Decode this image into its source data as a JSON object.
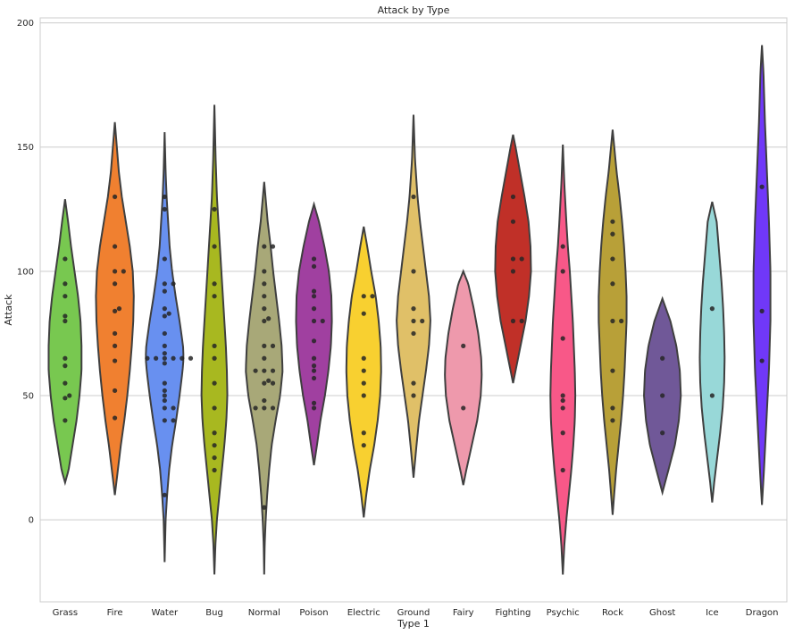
{
  "chart_data": {
    "type": "violin",
    "title": "Attack by Type",
    "xlabel": "Type 1",
    "ylabel": "Attack",
    "ylim": [
      -33,
      202
    ],
    "yticks": [
      0,
      50,
      100,
      150,
      200
    ],
    "grid": true,
    "categories": [
      {
        "name": "Grass",
        "color": "#78C850",
        "range": [
          15,
          129
        ],
        "points": [
          105,
          95,
          90,
          82,
          80,
          65,
          62,
          55,
          50,
          49,
          40
        ],
        "profile": [
          [
            15,
            0.0
          ],
          [
            20,
            0.14
          ],
          [
            30,
            0.3
          ],
          [
            40,
            0.46
          ],
          [
            50,
            0.58
          ],
          [
            60,
            0.66
          ],
          [
            70,
            0.66
          ],
          [
            80,
            0.62
          ],
          [
            90,
            0.52
          ],
          [
            100,
            0.38
          ],
          [
            110,
            0.24
          ],
          [
            120,
            0.12
          ],
          [
            129,
            0.0
          ]
        ]
      },
      {
        "name": "Fire",
        "color": "#F08030",
        "range": [
          10,
          160
        ],
        "points": [
          130,
          110,
          100,
          100,
          95,
          85,
          84,
          75,
          70,
          64,
          52,
          41
        ],
        "profile": [
          [
            10,
            0.0
          ],
          [
            20,
            0.12
          ],
          [
            30,
            0.24
          ],
          [
            40,
            0.38
          ],
          [
            50,
            0.5
          ],
          [
            60,
            0.6
          ],
          [
            70,
            0.68
          ],
          [
            80,
            0.74
          ],
          [
            90,
            0.76
          ],
          [
            100,
            0.72
          ],
          [
            110,
            0.6
          ],
          [
            120,
            0.44
          ],
          [
            130,
            0.28
          ],
          [
            140,
            0.16
          ],
          [
            150,
            0.08
          ],
          [
            160,
            0.0
          ]
        ]
      },
      {
        "name": "Water",
        "color": "#6890F0",
        "range": [
          -17,
          156
        ],
        "points": [
          130,
          125,
          105,
          95,
          95,
          92,
          85,
          83,
          82,
          75,
          70,
          67,
          65,
          65,
          65,
          65,
          65,
          65,
          63,
          55,
          52,
          50,
          48,
          45,
          45,
          40,
          40,
          10
        ],
        "profile": [
          [
            -17,
            0.0
          ],
          [
            0,
            0.04
          ],
          [
            10,
            0.1
          ],
          [
            20,
            0.18
          ],
          [
            30,
            0.3
          ],
          [
            40,
            0.46
          ],
          [
            50,
            0.6
          ],
          [
            60,
            0.72
          ],
          [
            65,
            0.76
          ],
          [
            70,
            0.74
          ],
          [
            80,
            0.6
          ],
          [
            90,
            0.44
          ],
          [
            100,
            0.3
          ],
          [
            110,
            0.2
          ],
          [
            120,
            0.14
          ],
          [
            130,
            0.08
          ],
          [
            140,
            0.04
          ],
          [
            156,
            0.0
          ]
        ]
      },
      {
        "name": "Bug",
        "color": "#A8B820",
        "range": [
          -22,
          167
        ],
        "points": [
          125,
          110,
          95,
          90,
          70,
          65,
          55,
          45,
          35,
          30,
          25,
          20
        ],
        "profile": [
          [
            -22,
            0.0
          ],
          [
            -10,
            0.04
          ],
          [
            0,
            0.1
          ],
          [
            10,
            0.2
          ],
          [
            20,
            0.3
          ],
          [
            30,
            0.4
          ],
          [
            40,
            0.48
          ],
          [
            50,
            0.52
          ],
          [
            60,
            0.5
          ],
          [
            70,
            0.46
          ],
          [
            80,
            0.4
          ],
          [
            90,
            0.34
          ],
          [
            100,
            0.28
          ],
          [
            110,
            0.22
          ],
          [
            120,
            0.16
          ],
          [
            130,
            0.1
          ],
          [
            145,
            0.05
          ],
          [
            167,
            0.0
          ]
        ]
      },
      {
        "name": "Normal",
        "color": "#A8A878",
        "range": [
          -22,
          136
        ],
        "points": [
          110,
          110,
          100,
          95,
          90,
          85,
          81,
          80,
          70,
          70,
          65,
          60,
          60,
          60,
          56,
          55,
          55,
          48,
          45,
          45,
          45,
          5
        ],
        "profile": [
          [
            -22,
            0.0
          ],
          [
            -10,
            0.02
          ],
          [
            0,
            0.06
          ],
          [
            10,
            0.12
          ],
          [
            20,
            0.2
          ],
          [
            30,
            0.3
          ],
          [
            40,
            0.46
          ],
          [
            50,
            0.64
          ],
          [
            60,
            0.74
          ],
          [
            70,
            0.7
          ],
          [
            80,
            0.6
          ],
          [
            90,
            0.48
          ],
          [
            100,
            0.36
          ],
          [
            110,
            0.26
          ],
          [
            120,
            0.14
          ],
          [
            136,
            0.0
          ]
        ]
      },
      {
        "name": "Poison",
        "color": "#A040A0",
        "range": [
          22,
          127
        ],
        "points": [
          105,
          102,
          92,
          90,
          85,
          80,
          80,
          72,
          65,
          62,
          60,
          57,
          47,
          45
        ],
        "profile": [
          [
            22,
            0.0
          ],
          [
            30,
            0.12
          ],
          [
            40,
            0.26
          ],
          [
            50,
            0.44
          ],
          [
            60,
            0.58
          ],
          [
            70,
            0.68
          ],
          [
            80,
            0.72
          ],
          [
            90,
            0.7
          ],
          [
            100,
            0.6
          ],
          [
            110,
            0.42
          ],
          [
            120,
            0.2
          ],
          [
            127,
            0.0
          ]
        ]
      },
      {
        "name": "Electric",
        "color": "#F8D030",
        "range": [
          1,
          118
        ],
        "points": [
          90,
          90,
          83,
          65,
          60,
          55,
          50,
          35,
          30
        ],
        "profile": [
          [
            1,
            0.0
          ],
          [
            10,
            0.1
          ],
          [
            20,
            0.24
          ],
          [
            30,
            0.42
          ],
          [
            40,
            0.56
          ],
          [
            50,
            0.66
          ],
          [
            60,
            0.7
          ],
          [
            70,
            0.68
          ],
          [
            80,
            0.6
          ],
          [
            90,
            0.48
          ],
          [
            100,
            0.3
          ],
          [
            110,
            0.14
          ],
          [
            118,
            0.0
          ]
        ]
      },
      {
        "name": "Ground",
        "color": "#E0C068",
        "range": [
          17,
          163
        ],
        "points": [
          130,
          100,
          85,
          80,
          80,
          75,
          55,
          50
        ],
        "profile": [
          [
            17,
            0.0
          ],
          [
            30,
            0.12
          ],
          [
            40,
            0.22
          ],
          [
            50,
            0.36
          ],
          [
            60,
            0.5
          ],
          [
            70,
            0.62
          ],
          [
            80,
            0.68
          ],
          [
            90,
            0.62
          ],
          [
            100,
            0.5
          ],
          [
            110,
            0.38
          ],
          [
            120,
            0.26
          ],
          [
            130,
            0.16
          ],
          [
            145,
            0.06
          ],
          [
            163,
            0.0
          ]
        ]
      },
      {
        "name": "Fairy",
        "color": "#EE99AC",
        "range": [
          14,
          100
        ],
        "points": [
          70,
          45
        ],
        "profile": [
          [
            14,
            0.0
          ],
          [
            20,
            0.12
          ],
          [
            30,
            0.34
          ],
          [
            40,
            0.56
          ],
          [
            50,
            0.7
          ],
          [
            58,
            0.74
          ],
          [
            65,
            0.72
          ],
          [
            75,
            0.6
          ],
          [
            85,
            0.42
          ],
          [
            95,
            0.2
          ],
          [
            100,
            0.0
          ]
        ]
      },
      {
        "name": "Fighting",
        "color": "#C03028",
        "range": [
          55,
          155
        ],
        "points": [
          130,
          120,
          105,
          105,
          100,
          80,
          80
        ],
        "profile": [
          [
            55,
            0.0
          ],
          [
            60,
            0.1
          ],
          [
            70,
            0.3
          ],
          [
            80,
            0.5
          ],
          [
            90,
            0.64
          ],
          [
            100,
            0.72
          ],
          [
            110,
            0.7
          ],
          [
            120,
            0.62
          ],
          [
            130,
            0.46
          ],
          [
            140,
            0.28
          ],
          [
            150,
            0.1
          ],
          [
            155,
            0.0
          ]
        ]
      },
      {
        "name": "Psychic",
        "color": "#F85888",
        "range": [
          -22,
          151
        ],
        "points": [
          110,
          100,
          73,
          50,
          48,
          45,
          35,
          20
        ],
        "profile": [
          [
            -22,
            0.0
          ],
          [
            -10,
            0.06
          ],
          [
            0,
            0.14
          ],
          [
            10,
            0.24
          ],
          [
            20,
            0.34
          ],
          [
            30,
            0.42
          ],
          [
            40,
            0.48
          ],
          [
            50,
            0.5
          ],
          [
            60,
            0.48
          ],
          [
            70,
            0.44
          ],
          [
            80,
            0.4
          ],
          [
            90,
            0.34
          ],
          [
            100,
            0.28
          ],
          [
            110,
            0.2
          ],
          [
            120,
            0.14
          ],
          [
            135,
            0.06
          ],
          [
            151,
            0.0
          ]
        ]
      },
      {
        "name": "Rock",
        "color": "#B8A038",
        "range": [
          2,
          157
        ],
        "points": [
          120,
          115,
          105,
          95,
          80,
          80,
          60,
          45,
          40
        ],
        "profile": [
          [
            2,
            0.0
          ],
          [
            10,
            0.06
          ],
          [
            20,
            0.14
          ],
          [
            30,
            0.24
          ],
          [
            40,
            0.34
          ],
          [
            50,
            0.42
          ],
          [
            60,
            0.48
          ],
          [
            70,
            0.52
          ],
          [
            80,
            0.56
          ],
          [
            90,
            0.56
          ],
          [
            100,
            0.52
          ],
          [
            110,
            0.46
          ],
          [
            120,
            0.38
          ],
          [
            130,
            0.28
          ],
          [
            140,
            0.16
          ],
          [
            157,
            0.0
          ]
        ]
      },
      {
        "name": "Ghost",
        "color": "#705898",
        "range": [
          11,
          89
        ],
        "points": [
          65,
          50,
          35
        ],
        "profile": [
          [
            11,
            0.0
          ],
          [
            20,
            0.24
          ],
          [
            30,
            0.5
          ],
          [
            40,
            0.66
          ],
          [
            50,
            0.74
          ],
          [
            60,
            0.7
          ],
          [
            70,
            0.56
          ],
          [
            80,
            0.32
          ],
          [
            89,
            0.0
          ]
        ]
      },
      {
        "name": "Ice",
        "color": "#98D8D8",
        "range": [
          7,
          128
        ],
        "points": [
          85,
          50
        ],
        "profile": [
          [
            7,
            0.0
          ],
          [
            15,
            0.08
          ],
          [
            25,
            0.2
          ],
          [
            35,
            0.32
          ],
          [
            45,
            0.42
          ],
          [
            55,
            0.48
          ],
          [
            65,
            0.5
          ],
          [
            75,
            0.48
          ],
          [
            85,
            0.44
          ],
          [
            95,
            0.38
          ],
          [
            105,
            0.3
          ],
          [
            115,
            0.22
          ],
          [
            120,
            0.18
          ],
          [
            128,
            0.0
          ]
        ]
      },
      {
        "name": "Dragon",
        "color": "#7038F8",
        "range": [
          6,
          191
        ],
        "points": [
          134,
          84,
          64
        ],
        "profile": [
          [
            6,
            0.0
          ],
          [
            20,
            0.08
          ],
          [
            40,
            0.18
          ],
          [
            60,
            0.28
          ],
          [
            80,
            0.34
          ],
          [
            100,
            0.34
          ],
          [
            120,
            0.28
          ],
          [
            140,
            0.2
          ],
          [
            160,
            0.12
          ],
          [
            180,
            0.06
          ],
          [
            191,
            0.0
          ]
        ]
      }
    ]
  }
}
